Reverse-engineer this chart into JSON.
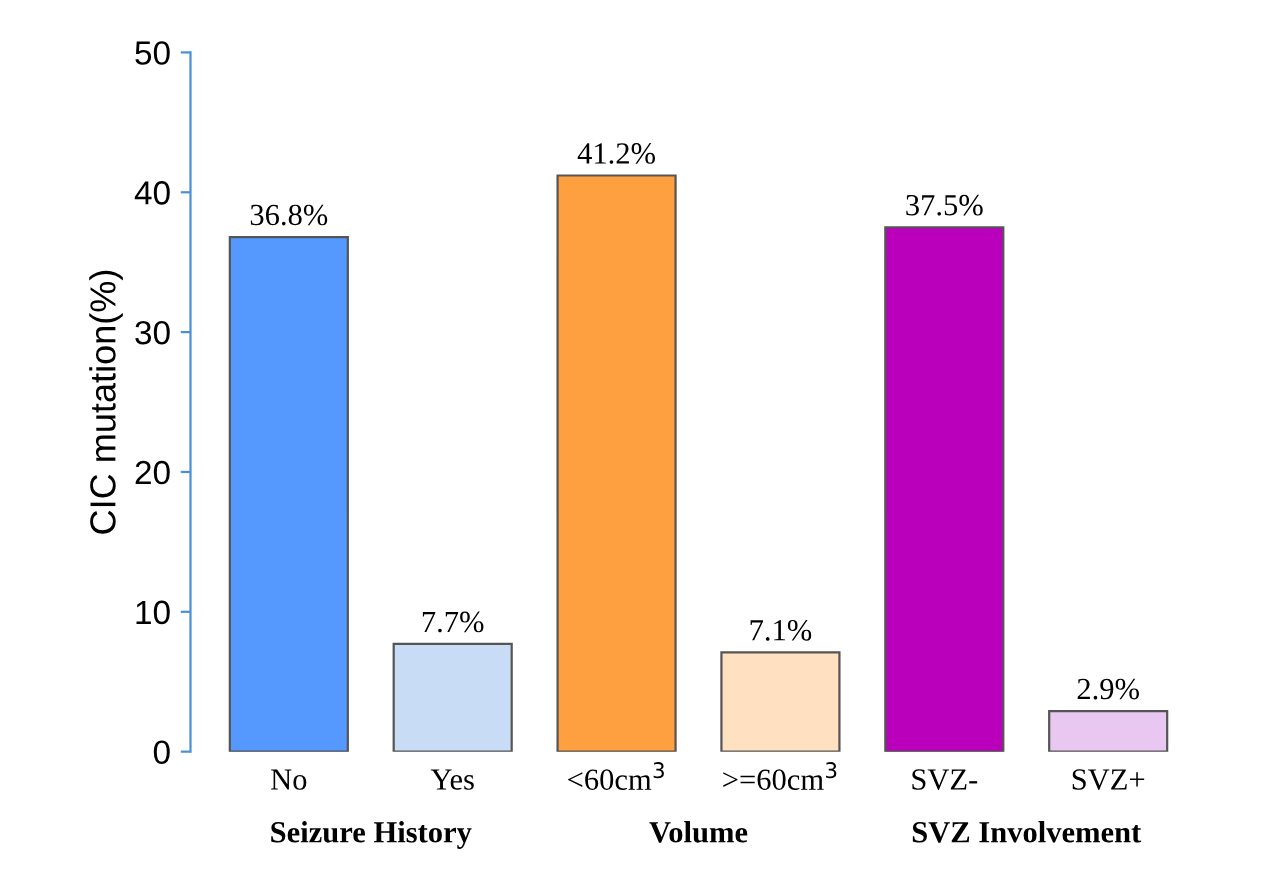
{
  "chart_data": {
    "type": "bar",
    "ylabel": "CIC mutation(%)",
    "categories": [
      "No",
      "Yes",
      "<60cm$^{3}$",
      ">=60cm$^{3}$",
      "SVZ-",
      "SVZ+"
    ],
    "values": [
      36.8,
      7.7,
      41.2,
      7.1,
      37.5,
      2.9
    ],
    "value_labels": [
      "36.8%",
      "7.7%",
      "41.2%",
      "7.1%",
      "37.5%",
      "2.9%"
    ],
    "colors": [
      "#5599ff",
      "#c8dcf6",
      "#ffa040",
      "#ffe0c0",
      "#bb00bb",
      "#e8c8f0"
    ],
    "ylim": [
      0,
      50
    ],
    "yticks": [
      0,
      10,
      20,
      30,
      40,
      50
    ],
    "grid": false,
    "annotations": [
      "Seizure History",
      "Volume",
      "SVZ Involvement"
    ]
  }
}
